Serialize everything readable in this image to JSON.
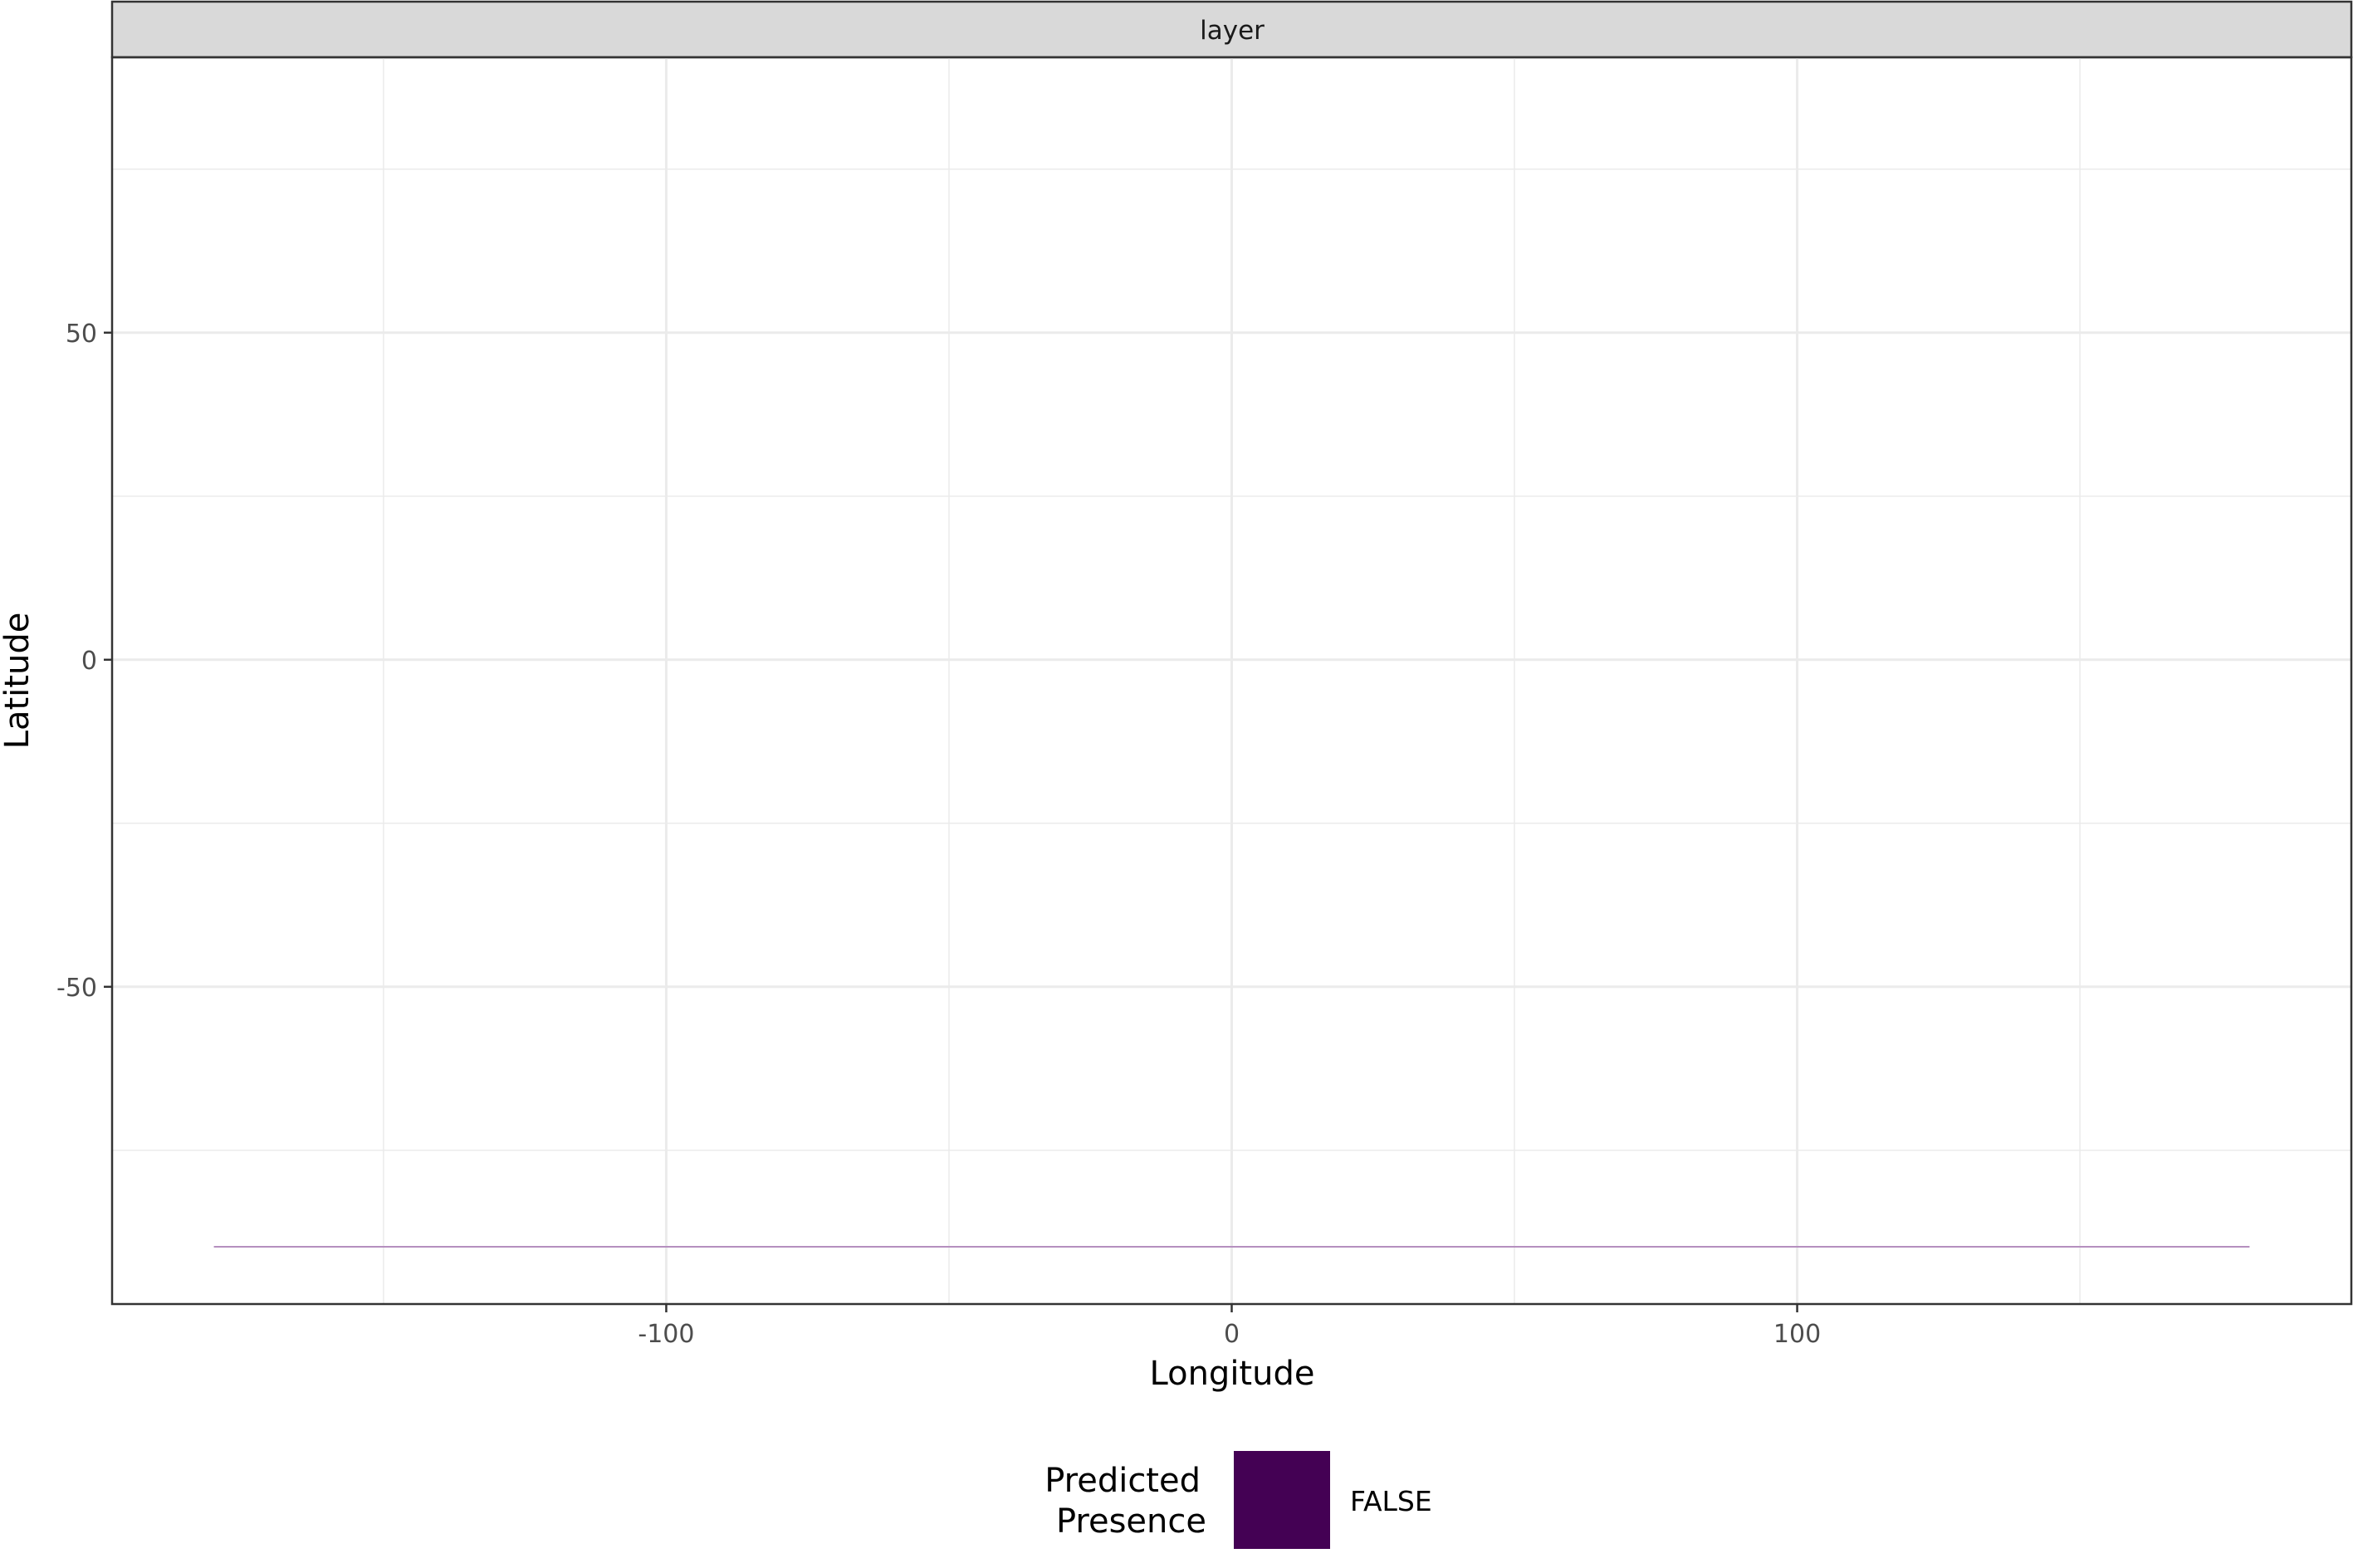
{
  "chart_data": {
    "type": "line",
    "facet_label": "layer",
    "xlabel": "Longitude",
    "ylabel": "Latitude",
    "xlim": [
      -198,
      198
    ],
    "ylim": [
      -98.5,
      92.1
    ],
    "x_ticks": [
      -100,
      0,
      100
    ],
    "x_tick_labels": [
      "-100",
      "0",
      "100"
    ],
    "x_minor": [
      -150,
      -50,
      50,
      150
    ],
    "y_ticks": [
      -50,
      0,
      50
    ],
    "y_tick_labels": [
      "-50",
      "0",
      "50"
    ],
    "y_minor": [
      -75,
      -25,
      25,
      75
    ],
    "grid": true,
    "series": [
      {
        "x": [
          -180,
          180
        ],
        "y": [
          -89.75,
          -89.75
        ],
        "color": "#b58fbf"
      }
    ],
    "legend": {
      "title_lines": [
        "Predicted",
        "Presence"
      ],
      "placement": "bottom",
      "entries": [
        {
          "label": "FALSE",
          "color": "#440154"
        }
      ]
    },
    "colors": {
      "strip_bg": "#d9d9d9",
      "grid": "#ebebeb",
      "border": "#333333"
    }
  }
}
